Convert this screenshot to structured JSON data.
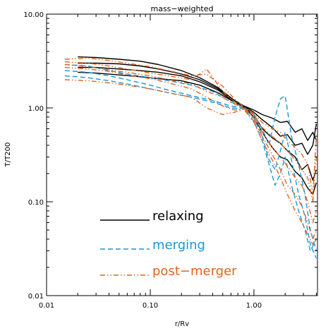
{
  "chart_data": {
    "type": "line",
    "title": "mass−weighted",
    "xlabel": "r/Rv",
    "ylabel": "T/T200",
    "xscale": "log",
    "yscale": "log",
    "xlim": [
      0.01,
      4.1
    ],
    "ylim": [
      0.01,
      10
    ],
    "x_ticks": [
      {
        "value": 0.01,
        "label": "0.01"
      },
      {
        "value": 0.1,
        "label": "0.10"
      },
      {
        "value": 1.0,
        "label": "1.00"
      }
    ],
    "y_ticks": [
      {
        "value": 0.01,
        "label": "0.01"
      },
      {
        "value": 0.1,
        "label": "0.10"
      },
      {
        "value": 1.0,
        "label": "1.00"
      },
      {
        "value": 10.0,
        "label": "10.00"
      }
    ],
    "grid": false,
    "legend": {
      "placement": "bottom-left",
      "entries": [
        {
          "label": "relaxing",
          "color": "#000000",
          "style": "solid"
        },
        {
          "label": "merging",
          "color": "#1a96d4",
          "style": "dashed"
        },
        {
          "label": "post−merger",
          "color": "#e2631f",
          "style": "dash-dot-dot"
        }
      ]
    },
    "series": [
      {
        "group": "relaxing",
        "color": "#000000",
        "style": "solid",
        "x": [
          0.02,
          0.03,
          0.05,
          0.08,
          0.12,
          0.2,
          0.3,
          0.45,
          0.65,
          0.8,
          1.0,
          1.2,
          1.5,
          1.8,
          2.1,
          2.5,
          2.9,
          3.3,
          3.7,
          4.0
        ],
        "y": [
          3.5,
          3.45,
          3.3,
          3.15,
          2.9,
          2.5,
          2.1,
          1.65,
          1.2,
          1.05,
          0.95,
          0.85,
          0.78,
          0.7,
          0.72,
          0.55,
          0.6,
          0.45,
          0.55,
          0.45
        ]
      },
      {
        "group": "relaxing",
        "color": "#000000",
        "style": "solid",
        "x": [
          0.02,
          0.03,
          0.05,
          0.08,
          0.12,
          0.2,
          0.3,
          0.45,
          0.65,
          0.8,
          1.0,
          1.2,
          1.5,
          1.8,
          2.1,
          2.5,
          2.9,
          3.3,
          3.7,
          4.0
        ],
        "y": [
          3.0,
          3.0,
          2.95,
          2.8,
          2.6,
          2.3,
          2.0,
          1.6,
          1.2,
          1.05,
          0.9,
          0.75,
          0.62,
          0.5,
          0.52,
          0.4,
          0.42,
          0.32,
          0.4,
          0.68
        ]
      },
      {
        "group": "relaxing",
        "color": "#000000",
        "style": "solid",
        "x": [
          0.02,
          0.03,
          0.05,
          0.08,
          0.12,
          0.2,
          0.3,
          0.45,
          0.65,
          0.8,
          1.0,
          1.2,
          1.5,
          1.8,
          2.1,
          2.5,
          2.9,
          3.3,
          3.7,
          4.0
        ],
        "y": [
          2.7,
          2.7,
          2.6,
          2.5,
          2.4,
          2.2,
          1.9,
          1.55,
          1.15,
          1.03,
          0.85,
          0.6,
          0.48,
          0.42,
          0.35,
          0.3,
          0.22,
          0.25,
          0.17,
          0.22
        ]
      },
      {
        "group": "relaxing",
        "color": "#000000",
        "style": "solid",
        "x": [
          0.02,
          0.03,
          0.05,
          0.08,
          0.12,
          0.2,
          0.3,
          0.45,
          0.65,
          0.8,
          1.0,
          1.2,
          1.5,
          1.8,
          2.1,
          2.5,
          2.9,
          3.3,
          3.7,
          4.0
        ],
        "y": [
          2.4,
          2.35,
          2.25,
          2.15,
          2.05,
          1.95,
          1.75,
          1.45,
          1.15,
          1.02,
          0.8,
          0.55,
          0.38,
          0.3,
          0.28,
          0.21,
          0.18,
          0.14,
          0.12,
          0.16
        ]
      },
      {
        "group": "merging",
        "color": "#1a96d4",
        "style": "dashed",
        "x": [
          0.015,
          0.025,
          0.04,
          0.06,
          0.1,
          0.15,
          0.25,
          0.4,
          0.6,
          0.8,
          1.0,
          1.2,
          1.4,
          1.6,
          1.8,
          2.0,
          2.3,
          2.7,
          3.1,
          3.5,
          4.0
        ],
        "y": [
          2.9,
          2.8,
          2.5,
          2.3,
          2.1,
          1.95,
          1.75,
          1.5,
          1.15,
          1.02,
          0.85,
          0.6,
          0.4,
          0.8,
          1.25,
          1.35,
          0.5,
          0.25,
          0.12,
          0.05,
          0.03
        ]
      },
      {
        "group": "merging",
        "color": "#1a96d4",
        "style": "dashed",
        "x": [
          0.015,
          0.025,
          0.04,
          0.06,
          0.1,
          0.15,
          0.25,
          0.4,
          0.6,
          0.8,
          1.0,
          1.2,
          1.4,
          1.6,
          1.8,
          2.0,
          2.3,
          2.7,
          3.1,
          3.5,
          4.0
        ],
        "y": [
          2.5,
          2.4,
          2.2,
          2.0,
          1.75,
          1.55,
          1.35,
          1.2,
          1.05,
          1.0,
          0.78,
          0.5,
          0.28,
          0.22,
          0.35,
          0.55,
          0.28,
          0.12,
          0.07,
          0.035,
          0.025
        ]
      },
      {
        "group": "merging",
        "color": "#1a96d4",
        "style": "dashed",
        "x": [
          0.015,
          0.025,
          0.04,
          0.06,
          0.1,
          0.15,
          0.25,
          0.4,
          0.6,
          0.8,
          1.0,
          1.2,
          1.4,
          1.6,
          1.8,
          2.0,
          2.3,
          2.7,
          3.1,
          3.5,
          4.0
        ],
        "y": [
          2.2,
          2.1,
          1.95,
          1.8,
          1.6,
          1.45,
          1.3,
          1.15,
          1.0,
          0.98,
          0.72,
          0.45,
          0.25,
          0.15,
          0.2,
          0.3,
          0.15,
          0.08,
          0.05,
          0.03,
          0.04
        ]
      },
      {
        "group": "post-merger",
        "color": "#e2631f",
        "style": "dash-dot-dot",
        "x": [
          0.015,
          0.025,
          0.04,
          0.06,
          0.1,
          0.15,
          0.25,
          0.35,
          0.5,
          0.65,
          0.8,
          1.0,
          1.2,
          1.5,
          1.8,
          2.1,
          2.5,
          2.9,
          3.3,
          3.7,
          4.0
        ],
        "y": [
          3.3,
          3.4,
          3.2,
          3.0,
          2.75,
          2.5,
          2.2,
          2.3,
          1.7,
          1.25,
          1.02,
          0.88,
          0.7,
          0.6,
          0.55,
          0.45,
          0.38,
          0.32,
          0.25,
          0.12,
          0.5
        ]
      },
      {
        "group": "post-merger",
        "color": "#e2631f",
        "style": "dash-dot-dot",
        "x": [
          0.015,
          0.025,
          0.04,
          0.06,
          0.1,
          0.15,
          0.25,
          0.35,
          0.5,
          0.65,
          0.8,
          1.0,
          1.2,
          1.5,
          1.8,
          2.1,
          2.5,
          2.9,
          3.3,
          3.7,
          4.0
        ],
        "y": [
          3.1,
          3.0,
          2.8,
          2.6,
          2.35,
          2.2,
          2.0,
          2.6,
          1.5,
          1.15,
          1.0,
          0.85,
          0.62,
          0.5,
          0.42,
          0.35,
          0.28,
          0.22,
          0.18,
          0.1,
          0.3
        ]
      },
      {
        "group": "post-merger",
        "color": "#e2631f",
        "style": "dash-dot-dot",
        "x": [
          0.015,
          0.025,
          0.04,
          0.06,
          0.1,
          0.15,
          0.25,
          0.35,
          0.5,
          0.65,
          0.8,
          1.0,
          1.2,
          1.5,
          1.8,
          2.1,
          2.5,
          2.9,
          3.3,
          3.7,
          4.0
        ],
        "y": [
          2.9,
          2.75,
          2.55,
          2.4,
          2.2,
          2.0,
          1.8,
          1.5,
          1.3,
          1.1,
          1.0,
          0.8,
          0.55,
          0.38,
          0.3,
          0.24,
          0.18,
          0.15,
          0.1,
          0.06,
          0.08
        ]
      },
      {
        "group": "post-merger",
        "color": "#e2631f",
        "style": "dash-dot-dot",
        "x": [
          0.015,
          0.025,
          0.04,
          0.06,
          0.1,
          0.15,
          0.25,
          0.35,
          0.5,
          0.65,
          0.8,
          1.0,
          1.2,
          1.5,
          1.8,
          2.1,
          2.5,
          2.9,
          3.3,
          3.7,
          4.0
        ],
        "y": [
          2.7,
          2.6,
          2.45,
          2.25,
          2.05,
          1.85,
          1.6,
          1.3,
          1.05,
          0.95,
          0.98,
          0.75,
          0.5,
          0.32,
          0.22,
          0.15,
          0.12,
          0.09,
          0.06,
          0.04,
          0.05
        ]
      },
      {
        "group": "post-merger",
        "color": "#e2631f",
        "style": "dash-dot-dot",
        "x": [
          0.015,
          0.025,
          0.04,
          0.06,
          0.1,
          0.15,
          0.25,
          0.35,
          0.5,
          0.65,
          0.8,
          1.0,
          1.2,
          1.5,
          1.8,
          2.1,
          2.5,
          2.9,
          3.3,
          3.7,
          4.0
        ],
        "y": [
          2.0,
          1.95,
          1.85,
          1.75,
          1.6,
          1.45,
          1.3,
          1.0,
          0.85,
          0.9,
          0.97,
          0.7,
          0.45,
          0.28,
          0.18,
          0.12,
          0.08,
          0.06,
          0.045,
          0.035,
          0.04
        ]
      }
    ]
  }
}
